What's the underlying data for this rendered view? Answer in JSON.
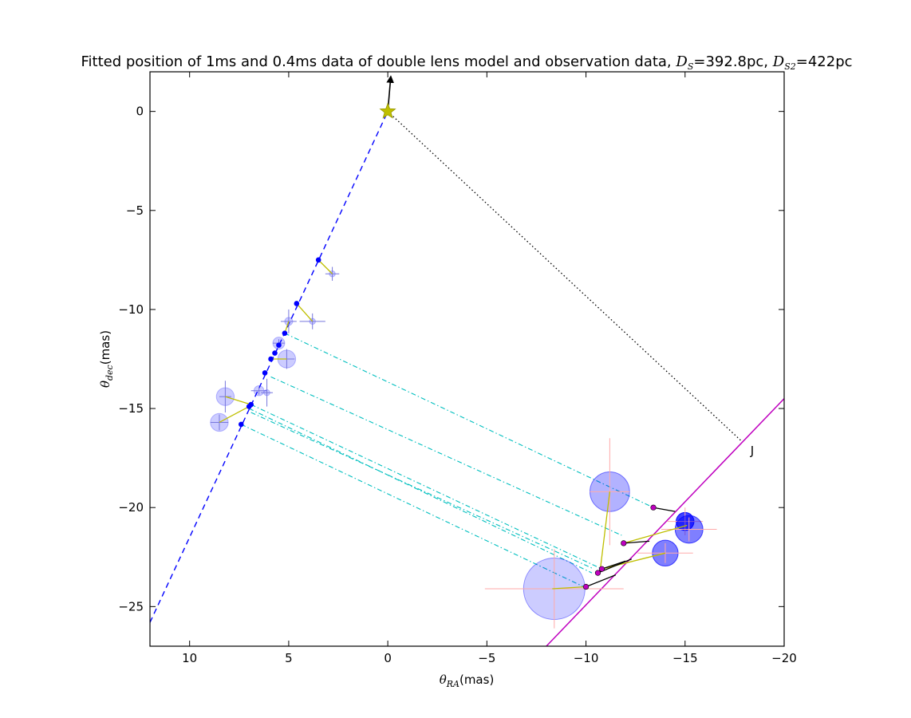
{
  "chart_data": {
    "type": "scatter",
    "title": {
      "prefix": "Fitted position of 1ms and 0.4ms data of double lens model and observation data, ",
      "ds_symbol": "D",
      "ds_sub": "S",
      "ds_value": "=392.8pc, ",
      "ds2_symbol": "D",
      "ds2_sub": "S2",
      "ds2_value": "=422pc"
    },
    "xlabel": {
      "symbol": "θ",
      "sub": "RA",
      "unit": "(mas)"
    },
    "ylabel": {
      "symbol": "θ",
      "sub": "dec",
      "unit": "(mas)"
    },
    "xlim": [
      12,
      -20
    ],
    "ylim": [
      -27,
      2
    ],
    "xticks": [
      10,
      5,
      0,
      -5,
      -10,
      -15,
      -20
    ],
    "xtick_labels": [
      "10",
      "5",
      "0",
      "−5",
      "−10",
      "−15",
      "−20"
    ],
    "yticks": [
      0,
      -5,
      -10,
      -15,
      -20,
      -25
    ],
    "ytick_labels": [
      "0",
      "−5",
      "−10",
      "−15",
      "−20",
      "−25"
    ],
    "annotation": "J",
    "annotation_pos": [
      -18.3,
      -17.1
    ],
    "colors": {
      "lens1": "#0000ff",
      "lens2": "#bf00bf",
      "source": "#bfbf00",
      "link": "#bfbf00",
      "cross": "#00bfbf",
      "error1": "#7777dd",
      "error2": "#ffaaaa"
    },
    "source_star": [
      0,
      0
    ],
    "proper_motion_arrow": [
      [
        0,
        0
      ],
      [
        -0.15,
        1.75
      ]
    ],
    "lens1_line": [
      [
        12,
        -25.8
      ],
      [
        0,
        0
      ]
    ],
    "lens2_line": [
      [
        -8,
        -27
      ],
      [
        -20,
        -14.5
      ]
    ],
    "source_to_J_line": [
      [
        0,
        0
      ],
      [
        -17.8,
        -16.6
      ]
    ],
    "lens1_images": [
      [
        3.5,
        -7.5
      ],
      [
        4.6,
        -9.7
      ],
      [
        5.2,
        -11.2
      ],
      [
        5.5,
        -11.8
      ],
      [
        5.7,
        -12.2
      ],
      [
        5.9,
        -12.5
      ],
      [
        6.2,
        -13.2
      ],
      [
        6.9,
        -14.8
      ],
      [
        7.0,
        -14.9
      ],
      [
        7.4,
        -15.8
      ]
    ],
    "lens1_observed": [
      {
        "x": 2.8,
        "y": -8.2,
        "r": 0.15,
        "xerr": 0.35,
        "yerr": 0.35
      },
      {
        "x": 3.8,
        "y": -10.6,
        "r": 0.15,
        "xerr": 0.65,
        "yerr": 0.4
      },
      {
        "x": 5.0,
        "y": -10.6,
        "r": 0.2,
        "xerr": 0.4,
        "yerr": 0.6
      },
      {
        "x": 5.5,
        "y": -11.7,
        "r": 0.3,
        "xerr": 0.3,
        "yerr": 0.2
      },
      {
        "x": 5.1,
        "y": -12.5,
        "r": 0.45,
        "xerr": 0.4,
        "yerr": 0.5
      },
      {
        "x": 6.5,
        "y": -14.1,
        "r": 0.25,
        "xerr": 0.4,
        "yerr": 0.2
      },
      {
        "x": 6.1,
        "y": -14.2,
        "r": 0.15,
        "xerr": 0.3,
        "yerr": 0.7
      },
      {
        "x": 8.2,
        "y": -14.4,
        "r": 0.45,
        "xerr": 0.3,
        "yerr": 0.8
      },
      {
        "x": 8.5,
        "y": -15.7,
        "r": 0.45,
        "xerr": 0.45,
        "yerr": 0.4
      }
    ],
    "lens1_links": [
      [
        [
          3.5,
          -7.5
        ],
        [
          2.8,
          -8.2
        ]
      ],
      [
        [
          4.6,
          -9.7
        ],
        [
          3.8,
          -10.6
        ]
      ],
      [
        [
          5.2,
          -11.2
        ],
        [
          5.0,
          -10.6
        ]
      ],
      [
        [
          5.9,
          -12.5
        ],
        [
          5.1,
          -12.5
        ]
      ],
      [
        [
          6.9,
          -14.8
        ],
        [
          8.2,
          -14.4
        ]
      ],
      [
        [
          7.0,
          -14.9
        ],
        [
          8.5,
          -15.7
        ]
      ]
    ],
    "lens2_images": [
      [
        -13.4,
        -20.0
      ],
      [
        -11.9,
        -21.8
      ],
      [
        -10.8,
        -23.1
      ],
      [
        -10.6,
        -23.3
      ],
      [
        -10.0,
        -24.0
      ]
    ],
    "lens2_observed": [
      {
        "x": -11.2,
        "y": -19.2,
        "r": 1.0,
        "xerr": 1.0,
        "yerr": 2.7,
        "alpha": 0.3
      },
      {
        "x": -15.0,
        "y": -20.7,
        "r": 0.45,
        "xerr": 0.9,
        "yerr": 0.7,
        "alpha": 0.75
      },
      {
        "x": -15.2,
        "y": -21.1,
        "r": 0.7,
        "xerr": 1.4,
        "yerr": 0.6,
        "alpha": 0.5
      },
      {
        "x": -14.0,
        "y": -22.3,
        "r": 0.65,
        "xerr": 1.4,
        "yerr": 0.5,
        "alpha": 0.5
      },
      {
        "x": -8.4,
        "y": -24.1,
        "r": 1.55,
        "xerr": 3.5,
        "yerr": 2.0,
        "alpha": 0.2
      }
    ],
    "lens2_source_links": [
      [
        [
          -11.2,
          -19.2
        ],
        [
          -10.7,
          -23.3
        ]
      ],
      [
        [
          -11.9,
          -21.8
        ],
        [
          -15.1,
          -20.9
        ]
      ],
      [
        [
          -10.8,
          -23.1
        ],
        [
          -14.0,
          -22.3
        ]
      ],
      [
        [
          -10.0,
          -24.0
        ],
        [
          -8.3,
          -24.1
        ]
      ]
    ],
    "lens2_black_links": [
      [
        [
          -13.4,
          -20.0
        ],
        [
          -14.5,
          -20.2
        ]
      ],
      [
        [
          -11.9,
          -21.8
        ],
        [
          -13.2,
          -21.7
        ]
      ],
      [
        [
          -10.8,
          -23.1
        ],
        [
          -12.0,
          -22.7
        ]
      ],
      [
        [
          -10.6,
          -23.3
        ],
        [
          -12.3,
          -22.6
        ]
      ],
      [
        [
          -10.0,
          -24.0
        ],
        [
          -11.5,
          -23.4
        ]
      ]
    ],
    "cross_links": [
      [
        [
          5.2,
          -11.2
        ],
        [
          -13.4,
          -20.0
        ]
      ],
      [
        [
          5.9,
          -13.4
        ],
        [
          -11.8,
          -21.4
        ]
      ],
      [
        [
          6.9,
          -14.8
        ],
        [
          -10.8,
          -23.1
        ]
      ],
      [
        [
          7.0,
          -15.0
        ],
        [
          -10.3,
          -23.3
        ]
      ],
      [
        [
          7.4,
          -15.8
        ],
        [
          -10.1,
          -24.1
        ]
      ],
      [
        [
          6.9,
          -15.2
        ],
        [
          -10.4,
          -23.1
        ]
      ]
    ]
  }
}
